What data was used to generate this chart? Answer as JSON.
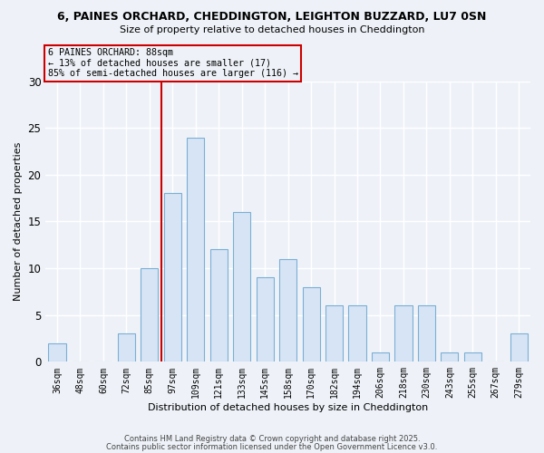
{
  "title": "6, PAINES ORCHARD, CHEDDINGTON, LEIGHTON BUZZARD, LU7 0SN",
  "subtitle": "Size of property relative to detached houses in Cheddington",
  "xlabel": "Distribution of detached houses by size in Cheddington",
  "ylabel": "Number of detached properties",
  "bar_labels": [
    "36sqm",
    "48sqm",
    "60sqm",
    "72sqm",
    "85sqm",
    "97sqm",
    "109sqm",
    "121sqm",
    "133sqm",
    "145sqm",
    "158sqm",
    "170sqm",
    "182sqm",
    "194sqm",
    "206sqm",
    "218sqm",
    "230sqm",
    "243sqm",
    "255sqm",
    "267sqm",
    "279sqm"
  ],
  "bar_values": [
    2,
    0,
    0,
    3,
    10,
    18,
    24,
    12,
    16,
    9,
    11,
    8,
    6,
    6,
    1,
    6,
    6,
    1,
    1,
    0,
    3
  ],
  "bar_color": "#d6e4f5",
  "bar_edgecolor": "#7bafd4",
  "ylim": [
    0,
    30
  ],
  "yticks": [
    0,
    5,
    10,
    15,
    20,
    25,
    30
  ],
  "marker_line_index": 4.5,
  "marker_label": "6 PAINES ORCHARD: 88sqm",
  "annotation_line1": "← 13% of detached houses are smaller (17)",
  "annotation_line2": "85% of semi-detached houses are larger (116) →",
  "box_color": "#cc0000",
  "background_color": "#eef2f8",
  "grid_color": "#ffffff",
  "footer1": "Contains HM Land Registry data © Crown copyright and database right 2025.",
  "footer2": "Contains public sector information licensed under the Open Government Licence v3.0."
}
